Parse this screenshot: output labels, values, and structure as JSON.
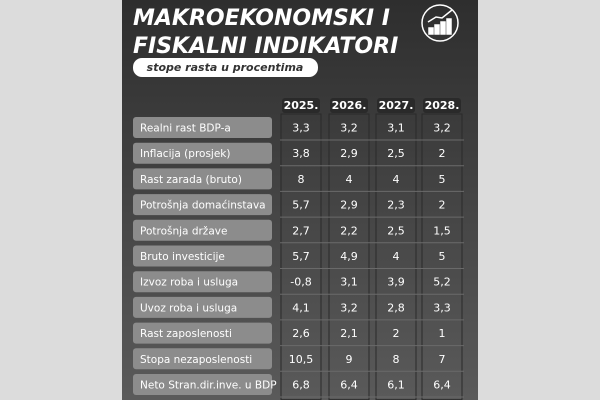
{
  "header": {
    "title_line1": "MAKROEKONOMSKI I",
    "title_line2": "FISKALNI INDIKATORI",
    "subtitle": "stope rasta u procentima"
  },
  "table": {
    "columns": [
      "2025.",
      "2026.",
      "2027.",
      "2028."
    ],
    "rows": [
      [
        "Realni rast BDP-a",
        "3,3",
        "3,2",
        "3,1",
        "3,2"
      ],
      [
        "Inflacija (prosjek)",
        "3,8",
        "2,9",
        "2,5",
        "2"
      ],
      [
        "Rast zarada (bruto)",
        "8",
        "4",
        "4",
        "5"
      ],
      [
        "Potrošnja domaćinstava",
        "5,7",
        "2,9",
        "2,3",
        "2"
      ],
      [
        "Potrošnja države",
        "2,7",
        "2,2",
        "2,5",
        "1,5"
      ],
      [
        "Bruto investicije",
        "5,7",
        "4,9",
        "4",
        "5"
      ],
      [
        "Izvoz roba i usluga",
        "-0,8",
        "3,1",
        "3,9",
        "5,2"
      ],
      [
        "Uvoz roba i usluga",
        "4,1",
        "3,2",
        "2,8",
        "3,3"
      ],
      [
        "Rast zaposlenosti",
        "2,6",
        "2,1",
        "2",
        "1"
      ],
      [
        "Stopa nezaposlenosti",
        "10,5",
        "9",
        "8",
        "7"
      ],
      [
        "Neto Stran.dir.inve. u BDP",
        "6,8",
        "6,4",
        "6,1",
        "6,4"
      ]
    ]
  }
}
